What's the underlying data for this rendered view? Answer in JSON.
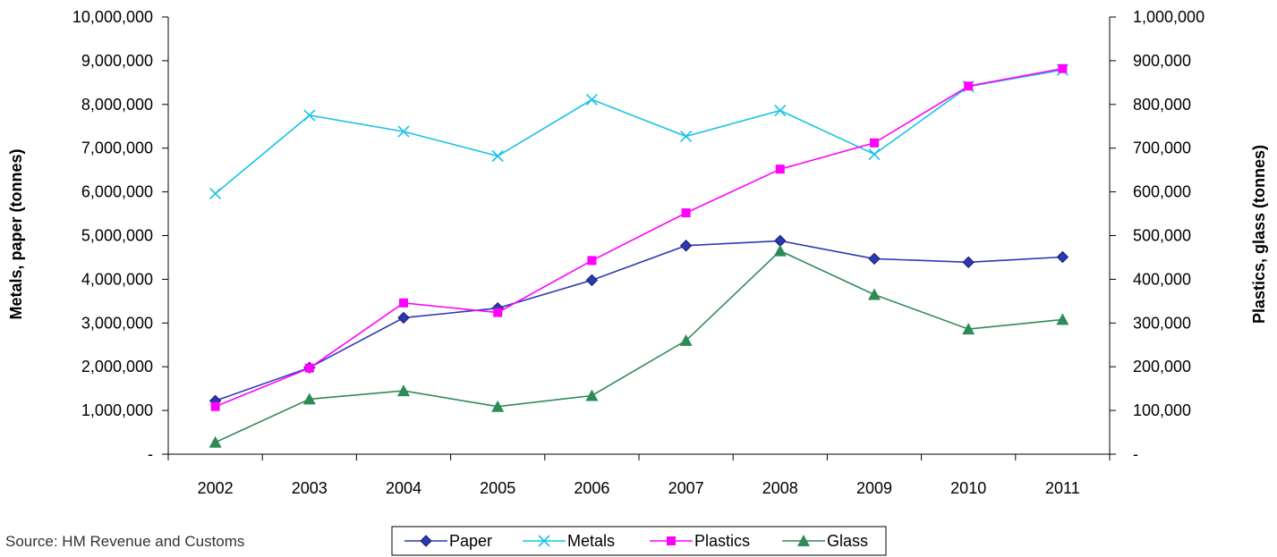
{
  "chart_data": {
    "type": "line",
    "title": "",
    "x": [
      "2002",
      "2003",
      "2004",
      "2005",
      "2006",
      "2007",
      "2008",
      "2009",
      "2010",
      "2011"
    ],
    "xlabel": "",
    "ylabel_left": "Metals, paper (tonnes)",
    "ylabel_right": "Plastics, glass (tonnes)",
    "ylim_left": [
      0,
      10000000
    ],
    "ylim_right": [
      0,
      1000000
    ],
    "yticks_left": [
      "-",
      "1,000,000",
      "2,000,000",
      "3,000,000",
      "4,000,000",
      "5,000,000",
      "6,000,000",
      "7,000,000",
      "8,000,000",
      "9,000,000",
      "10,000,000"
    ],
    "yticks_right": [
      "-",
      "100,000",
      "200,000",
      "300,000",
      "400,000",
      "500,000",
      "600,000",
      "700,000",
      "800,000",
      "900,000",
      "1,000,000"
    ],
    "grid": false,
    "legend_position": "bottom",
    "series": [
      {
        "name": "Paper",
        "axis": "left",
        "color": "#2a3bb0",
        "marker": "diamond",
        "values": [
          1220000,
          1980000,
          3120000,
          3340000,
          3980000,
          4770000,
          4880000,
          4470000,
          4390000,
          4510000
        ]
      },
      {
        "name": "Metals",
        "axis": "left",
        "color": "#19c3e3",
        "marker": "x",
        "values": [
          5960000,
          7750000,
          7380000,
          6820000,
          8110000,
          7270000,
          7860000,
          6860000,
          8410000,
          8790000
        ]
      },
      {
        "name": "Plastics",
        "axis": "right",
        "color": "#ff00ff",
        "marker": "square",
        "values": [
          109000,
          197000,
          346000,
          324000,
          443000,
          552000,
          652000,
          712000,
          842000,
          882000
        ]
      },
      {
        "name": "Glass",
        "axis": "right",
        "color": "#2e8b57",
        "marker": "triangle",
        "values": [
          27000,
          126000,
          145000,
          109000,
          134000,
          260000,
          465000,
          365000,
          286000,
          308000
        ]
      }
    ]
  },
  "source_text": "Source: HM Revenue and Customs"
}
